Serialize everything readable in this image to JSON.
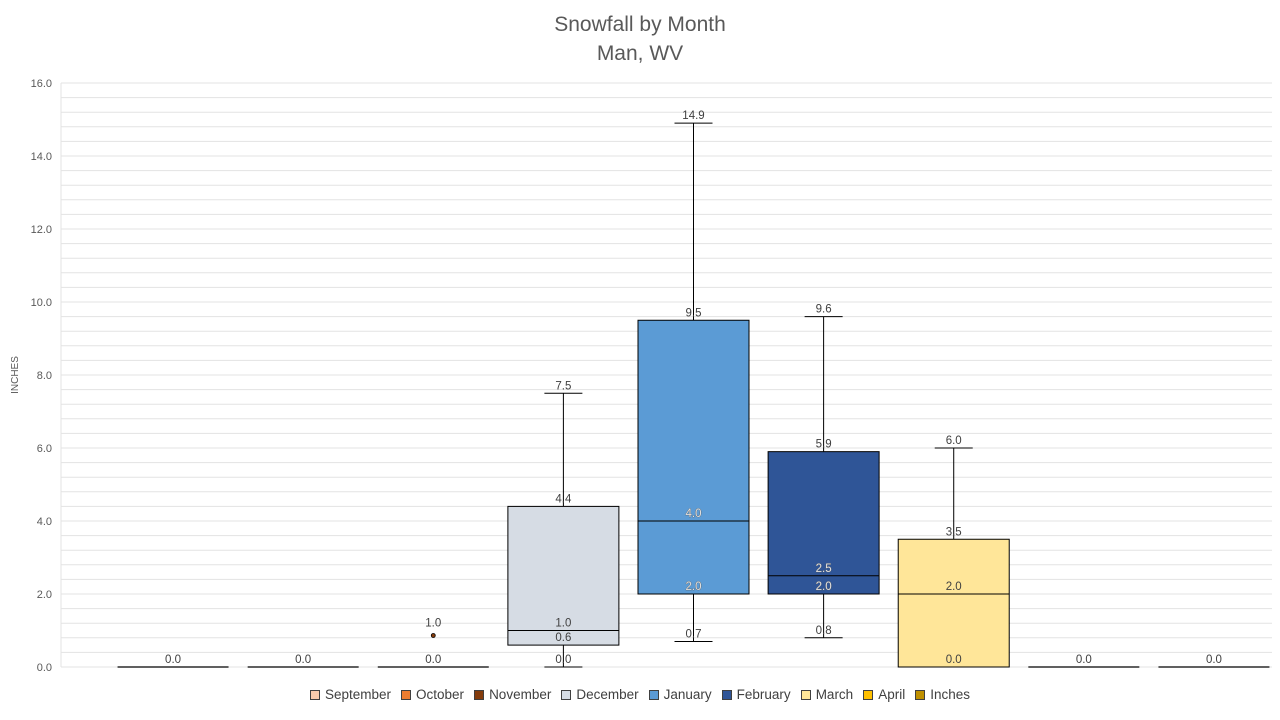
{
  "chart_data": {
    "type": "box",
    "title_line1": "Snowfall by Month",
    "title_line2": "Man, WV",
    "ylabel": "INCHES",
    "ylim": [
      0,
      16
    ],
    "y_ticks": [
      "0.0",
      "2.0",
      "4.0",
      "6.0",
      "8.0",
      "10.0",
      "12.0",
      "14.0",
      "16.0"
    ],
    "grid": true,
    "legend_position": "bottom",
    "categories": [
      "September",
      "October",
      "November",
      "December",
      "January",
      "February",
      "March",
      "April",
      "Inches"
    ],
    "series": [
      {
        "name": "September",
        "color": "#f8cbad",
        "min": 0.0,
        "q1": 0.0,
        "median": 0.0,
        "q3": 0.0,
        "max": 0.0,
        "outliers": []
      },
      {
        "name": "October",
        "color": "#ed7d31",
        "min": 0.0,
        "q1": 0.0,
        "median": 0.0,
        "q3": 0.0,
        "max": 0.0,
        "outliers": []
      },
      {
        "name": "November",
        "color": "#843c0c",
        "min": 0.0,
        "q1": 0.0,
        "median": 0.0,
        "q3": 0.0,
        "max": 0.0,
        "outliers": [
          1.0
        ]
      },
      {
        "name": "December",
        "color": "#d6dce4",
        "min": 0.0,
        "q1": 0.6,
        "median": 1.0,
        "q3": 4.4,
        "max": 7.5,
        "outliers": []
      },
      {
        "name": "January",
        "color": "#5b9bd5",
        "min": 0.7,
        "q1": 2.0,
        "median": 4.0,
        "q3": 9.5,
        "max": 14.9,
        "outliers": []
      },
      {
        "name": "February",
        "color": "#2f5597",
        "min": 0.8,
        "q1": 2.0,
        "median": 2.5,
        "q3": 5.9,
        "max": 9.6,
        "outliers": []
      },
      {
        "name": "March",
        "color": "#ffe699",
        "min": 0.0,
        "q1": 0.0,
        "median": 2.0,
        "q3": 3.5,
        "max": 6.0,
        "outliers": []
      },
      {
        "name": "April",
        "color": "#ffc000",
        "min": 0.0,
        "q1": 0.0,
        "median": 0.0,
        "q3": 0.0,
        "max": 0.0,
        "outliers": []
      },
      {
        "name": "Inches",
        "color": "#bf9000",
        "min": 0.0,
        "q1": 0.0,
        "median": 0.0,
        "q3": 0.0,
        "max": 0.0,
        "outliers": []
      }
    ],
    "data_labels": [
      [
        "0.0"
      ],
      [
        "0.0"
      ],
      [
        "0.0",
        "1.0"
      ],
      [
        "0.0",
        "0.6",
        "1.0",
        "4.4",
        "7.5"
      ],
      [
        "0.7",
        "2.0",
        "4.0",
        "9.5",
        "14.9"
      ],
      [
        "0.8",
        "2.0",
        "2.5",
        "5.9",
        "9.6"
      ],
      [
        "0.0",
        "2.0",
        "3.5",
        "6.0"
      ],
      [
        "0.0"
      ],
      [
        "0.0"
      ]
    ]
  }
}
